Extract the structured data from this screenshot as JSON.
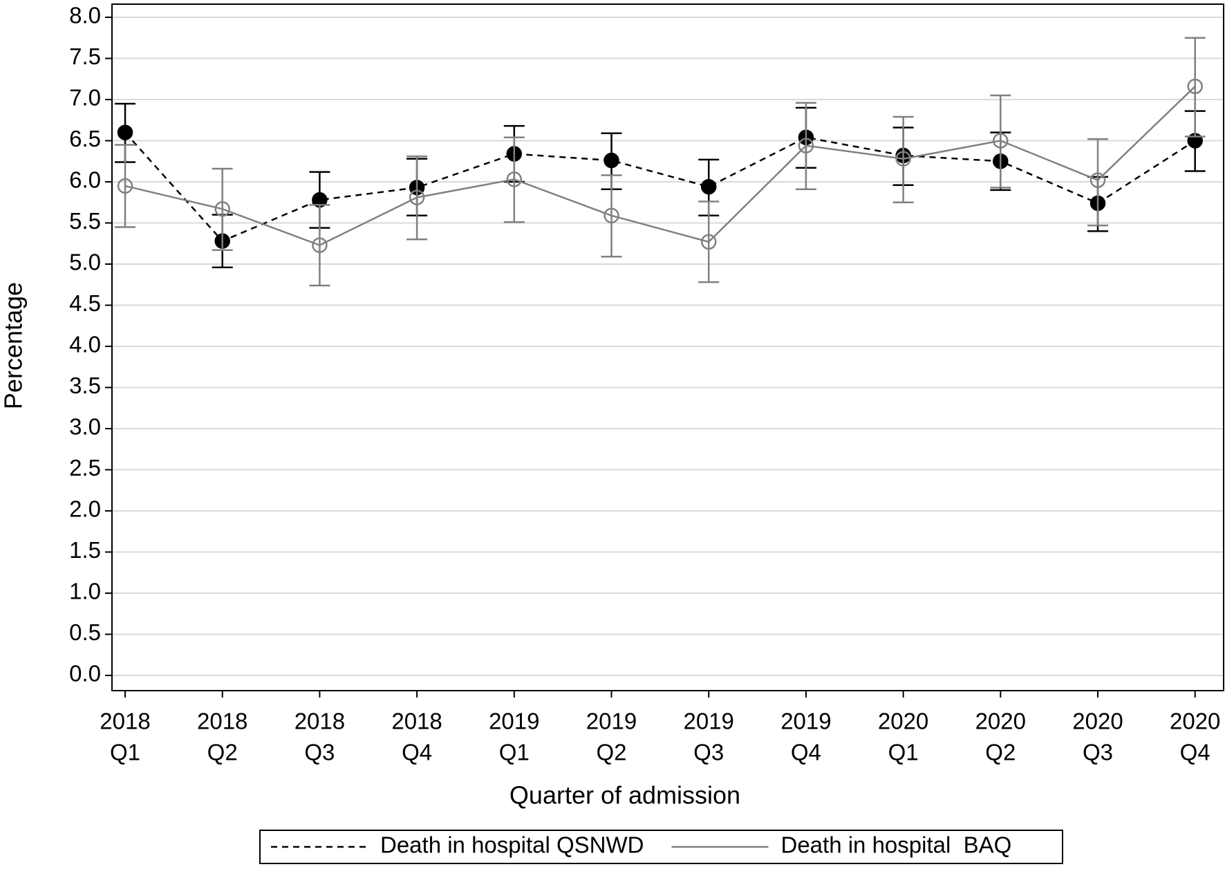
{
  "chart_data": {
    "type": "line",
    "x_label": "Quarter of admission",
    "y_label": "Percentage",
    "categories": [
      [
        "2018",
        "Q1"
      ],
      [
        "2018",
        "Q2"
      ],
      [
        "2018",
        "Q3"
      ],
      [
        "2018",
        "Q4"
      ],
      [
        "2019",
        "Q1"
      ],
      [
        "2019",
        "Q2"
      ],
      [
        "2019",
        "Q3"
      ],
      [
        "2019",
        "Q4"
      ],
      [
        "2020",
        "Q1"
      ],
      [
        "2020",
        "Q2"
      ],
      [
        "2020",
        "Q3"
      ],
      [
        "2020",
        "Q4"
      ]
    ],
    "ylim": [
      0,
      8
    ],
    "yticks": [
      {
        "value": 0,
        "label": "0.0"
      },
      {
        "value": 0.5,
        "label": "0.5"
      },
      {
        "value": 1,
        "label": "1.0"
      },
      {
        "value": 1.5,
        "label": "1.5"
      },
      {
        "value": 2,
        "label": "2.0"
      },
      {
        "value": 2.5,
        "label": "2.5"
      },
      {
        "value": 3,
        "label": "3.0"
      },
      {
        "value": 3.5,
        "label": "3.5"
      },
      {
        "value": 4,
        "label": "4.0"
      },
      {
        "value": 4.5,
        "label": "4.5"
      },
      {
        "value": 5,
        "label": "5.0"
      },
      {
        "value": 5.5,
        "label": "5.5"
      },
      {
        "value": 6,
        "label": "6.0"
      },
      {
        "value": 6.5,
        "label": "6.5"
      },
      {
        "value": 7,
        "label": "7.0"
      },
      {
        "value": 7.5,
        "label": "7.5"
      },
      {
        "value": 8,
        "label": "8.0"
      }
    ],
    "grid": true,
    "legend": "bottom",
    "series": [
      {
        "name": "Death in hospital QSNWD",
        "color": "#000000",
        "dash": true,
        "marker": "filled",
        "values": [
          6.6,
          5.28,
          5.78,
          5.93,
          6.34,
          6.26,
          5.94,
          6.54,
          6.32,
          6.25,
          5.74,
          6.5
        ],
        "lower": [
          6.24,
          4.96,
          5.44,
          5.59,
          6.0,
          5.91,
          5.59,
          6.17,
          5.96,
          5.9,
          5.4,
          6.13
        ],
        "upper": [
          6.95,
          5.6,
          6.12,
          6.28,
          6.68,
          6.59,
          6.27,
          6.9,
          6.66,
          6.6,
          6.06,
          6.86
        ]
      },
      {
        "name": "Death in hospital  BAQ",
        "color": "#808080",
        "dash": false,
        "marker": "open",
        "values": [
          5.95,
          5.67,
          5.23,
          5.81,
          6.03,
          5.59,
          5.27,
          6.44,
          6.28,
          6.5,
          6.02,
          7.16
        ],
        "lower": [
          5.45,
          5.17,
          4.74,
          5.3,
          5.51,
          5.09,
          4.78,
          5.91,
          5.75,
          5.93,
          5.47,
          6.55
        ],
        "upper": [
          6.45,
          6.16,
          5.72,
          6.31,
          6.54,
          6.08,
          5.76,
          6.96,
          6.79,
          7.05,
          6.52,
          7.75
        ]
      }
    ]
  }
}
